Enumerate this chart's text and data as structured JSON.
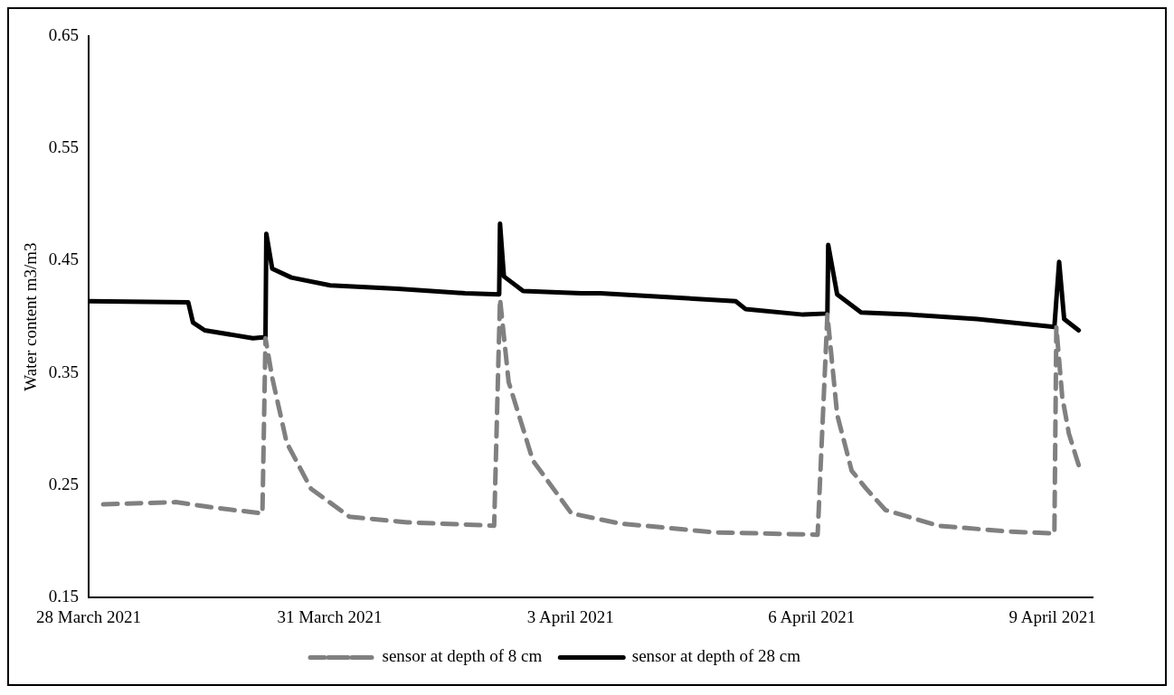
{
  "chart_data": {
    "type": "line",
    "ylabel": "Water content m3/m3",
    "xlim": [
      "2021-03-28",
      "2021-04-09T12:00"
    ],
    "xticks": [
      {
        "value": "2021-03-28",
        "label": "28 March 2021"
      },
      {
        "value": "2021-03-31",
        "label": "31 March 2021"
      },
      {
        "value": "2021-04-03",
        "label": "3 April 2021"
      },
      {
        "value": "2021-04-06",
        "label": "6 April 2021"
      },
      {
        "value": "2021-04-09",
        "label": "9 April 2021"
      }
    ],
    "ylim": [
      0.15,
      0.65
    ],
    "yticks": [
      0.15,
      0.25,
      0.35,
      0.45,
      0.55,
      0.65
    ],
    "grid": false,
    "legend": "bottom",
    "marker": "none",
    "series": [
      {
        "name": "sensor at depth of 8 cm",
        "color": "#808080",
        "line_style": "dashed",
        "x": [
          "2021-03-28T04:20",
          "2021-03-29T02:00",
          "2021-03-29T13:30",
          "2021-03-30T03:55",
          "2021-03-30T04:50",
          "2021-03-30T06:50",
          "2021-03-30T11:10",
          "2021-03-30T18:25",
          "2021-03-31T05:55",
          "2021-03-31T23:15",
          "2021-04-02T01:10",
          "2021-04-02T02:55",
          "2021-04-02T05:30",
          "2021-04-02T12:45",
          "2021-04-03T00:15",
          "2021-04-03T14:40",
          "2021-04-04T19:35",
          "2021-04-06T01:50",
          "2021-04-06T04:45",
          "2021-04-06T07:40",
          "2021-04-06T12:00",
          "2021-04-06T16:20",
          "2021-04-06T22:05",
          "2021-04-07T13:55",
          "2021-04-08T10:10",
          "2021-04-09T00:35",
          "2021-04-09T01:10",
          "2021-04-09T02:55",
          "2021-04-09T04:55",
          "2021-04-09T07:50"
        ],
        "values": [
          0.233,
          0.235,
          0.23,
          0.225,
          0.381,
          0.346,
          0.288,
          0.247,
          0.222,
          0.217,
          0.214,
          0.416,
          0.342,
          0.272,
          0.225,
          0.216,
          0.208,
          0.206,
          0.402,
          0.313,
          0.263,
          0.247,
          0.228,
          0.214,
          0.209,
          0.207,
          0.391,
          0.329,
          0.296,
          0.268
        ]
      },
      {
        "name": "sensor at depth of 28 cm",
        "color": "#000000",
        "line_style": "solid",
        "x": [
          "2021-03-28T00:00",
          "2021-03-29T05:45",
          "2021-03-29T07:10",
          "2021-03-29T10:40",
          "2021-03-30T01:05",
          "2021-03-30T04:50",
          "2021-03-30T05:05",
          "2021-03-30T06:50",
          "2021-03-30T12:35",
          "2021-03-31T00:10",
          "2021-03-31T20:20",
          "2021-04-01T16:30",
          "2021-04-02T02:40",
          "2021-04-02T02:55",
          "2021-04-02T04:05",
          "2021-04-02T09:50",
          "2021-04-03T03:10",
          "2021-04-03T08:55",
          "2021-04-05T01:20",
          "2021-04-05T04:15",
          "2021-04-05T21:30",
          "2021-04-06T04:45",
          "2021-04-06T05:00",
          "2021-04-06T07:40",
          "2021-04-06T14:50",
          "2021-04-07T05:20",
          "2021-04-08T01:30",
          "2021-04-09T00:35",
          "2021-04-09T02:00",
          "2021-04-09T03:30",
          "2021-04-09T07:50"
        ],
        "values": [
          0.414,
          0.413,
          0.395,
          0.388,
          0.381,
          0.382,
          0.474,
          0.443,
          0.435,
          0.428,
          0.425,
          0.421,
          0.42,
          0.483,
          0.436,
          0.423,
          0.421,
          0.421,
          0.414,
          0.407,
          0.402,
          0.403,
          0.464,
          0.42,
          0.404,
          0.402,
          0.398,
          0.391,
          0.449,
          0.398,
          0.388
        ]
      }
    ]
  }
}
